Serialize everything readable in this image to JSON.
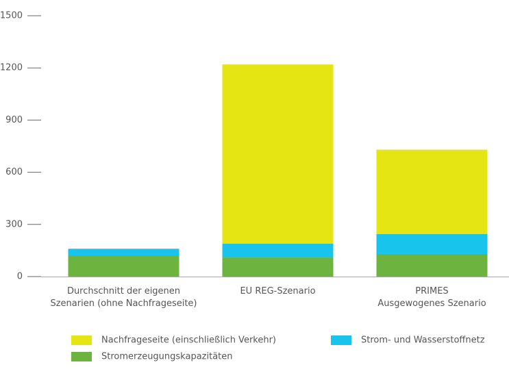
{
  "chart_data": {
    "type": "stacked_bar",
    "categories": [
      [
        "Durchschnitt der eigenen",
        "Szenarien (ohne Nachfrageseite)"
      ],
      [
        "EU REG-Szenario"
      ],
      [
        "PRIMES",
        "Ausgewogenes Szenario"
      ]
    ],
    "series": [
      {
        "name": "Nachfrageseite (einschließlich Verkehr)",
        "color": "#e5e514",
        "values": [
          0,
          1030,
          485
        ]
      },
      {
        "name": "Strom- und Wasserstoffnetz",
        "color": "#18c3ec",
        "values": [
          40,
          80,
          115
        ]
      },
      {
        "name": "Stromerzeugungskapazitäten",
        "color": "#6db33f",
        "values": [
          120,
          110,
          130
        ]
      }
    ],
    "ylim": [
      0,
      1500
    ],
    "yticks": [
      0,
      300,
      600,
      900,
      1200,
      1500
    ],
    "grid": false
  }
}
